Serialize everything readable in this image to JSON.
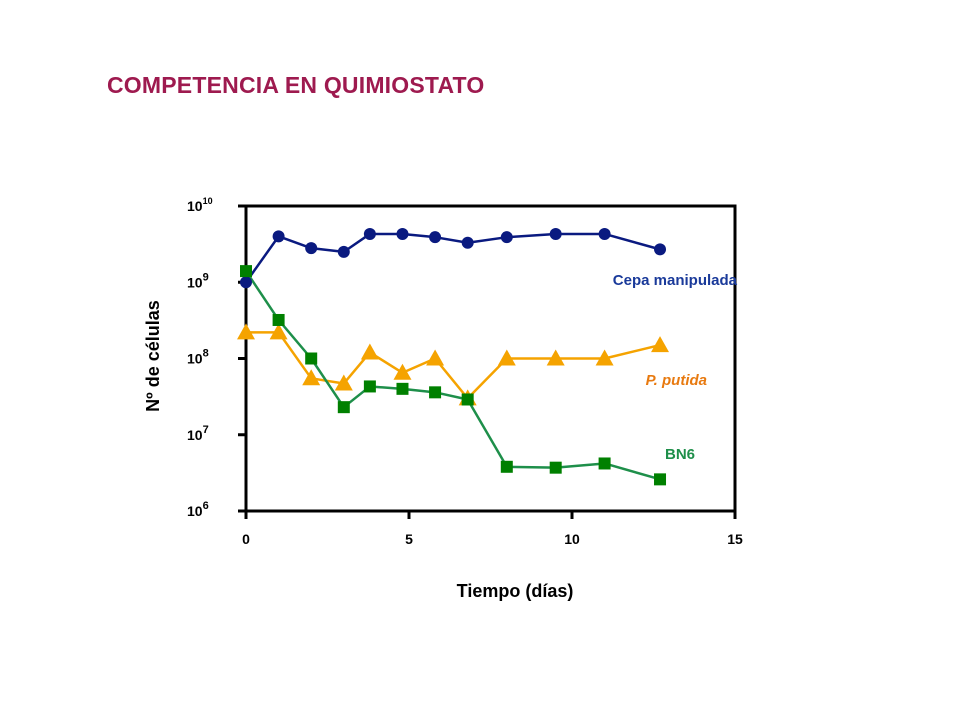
{
  "page": {
    "title": "COMPETENCIA EN QUIMIOSTATO"
  },
  "chart_data": {
    "type": "line",
    "title": "COMPETENCIA EN QUIMIOSTATO",
    "xlabel": "Tiempo (días)",
    "ylabel": "Nº de células",
    "xlim": [
      0,
      15
    ],
    "x_ticks": [
      "0",
      "5",
      "10",
      "15"
    ],
    "y_scale": "log",
    "ylim": [
      1000000,
      10000000000
    ],
    "y_ticks": [
      {
        "base": "10",
        "exp": "6"
      },
      {
        "base": "10",
        "exp": "7"
      },
      {
        "base": "10",
        "exp": "8"
      },
      {
        "base": "10",
        "exp": "9"
      },
      {
        "base": "10",
        "exp": "10"
      }
    ],
    "grid": false,
    "legend": "labels next to series",
    "series": [
      {
        "name": "Cepa manipulada",
        "color": "#0a1a80",
        "label_color": "#1a3a9a",
        "marker": "circle",
        "x": [
          0,
          1,
          2,
          3,
          3.8,
          4.8,
          5.8,
          6.8,
          8,
          9.5,
          11,
          12.7
        ],
        "y": [
          1000000000,
          4000000000,
          2800000000,
          2500000000,
          4300000000,
          4300000000,
          3900000000,
          3300000000,
          3900000000,
          4300000000,
          4300000000,
          2700000000
        ]
      },
      {
        "name": "P. putida",
        "color": "#f5a300",
        "label_color": "#e87a10",
        "marker": "triangle",
        "x": [
          0,
          1,
          2,
          3,
          3.8,
          4.8,
          5.8,
          6.8,
          8,
          9.5,
          11,
          12.7
        ],
        "y": [
          220000000,
          220000000,
          55000000,
          47000000,
          120000000,
          65000000,
          100000000,
          30000000,
          100000000,
          100000000,
          100000000,
          150000000
        ]
      },
      {
        "name": "BN6",
        "color": "#1e8f4a",
        "label_color": "#1e8f4a",
        "marker": "square",
        "marker_color": "#008000",
        "x": [
          0,
          1,
          2,
          3,
          3.8,
          4.8,
          5.8,
          6.8,
          8,
          9.5,
          11,
          12.7
        ],
        "y": [
          1400000000,
          320000000,
          100000000,
          23000000,
          43000000,
          40000000,
          36000000,
          29000000,
          3800000,
          3700000,
          4200000,
          2600000
        ]
      }
    ]
  }
}
